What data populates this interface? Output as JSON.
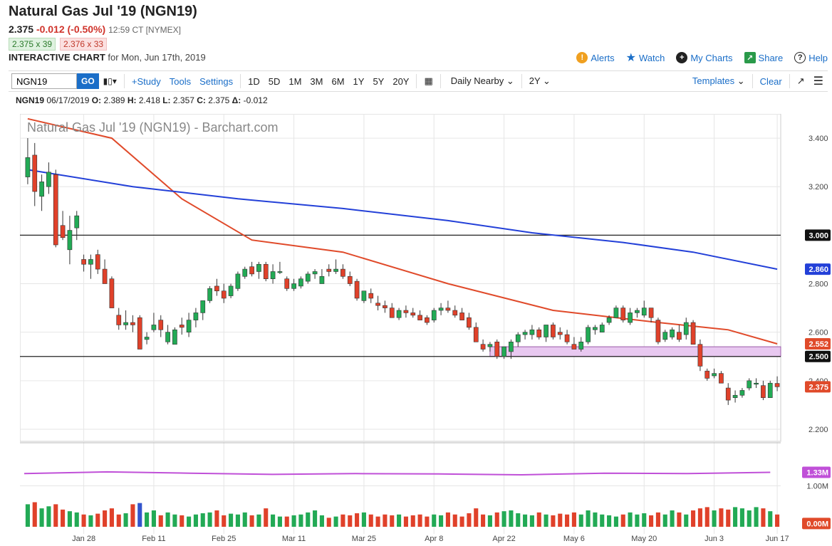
{
  "header": {
    "title": "Natural Gas Jul '19 (NGN19)",
    "last": "2.375",
    "change": "-0.012 (-0.50%)",
    "time": "12:59 CT [NYMEX]",
    "bid": "2.375 x 39",
    "ask": "2.376 x 33",
    "chart_label": "INTERACTIVE CHART",
    "chart_date": "for Mon, Jun 17th, 2019"
  },
  "links": {
    "alerts": "Alerts",
    "watch": "Watch",
    "mycharts": "My Charts",
    "share": "Share",
    "help": "Help"
  },
  "toolbar": {
    "symbol": "NGN19",
    "go": "GO",
    "study": "+Study",
    "tools": "Tools",
    "settings": "Settings",
    "ranges": [
      "1D",
      "5D",
      "1M",
      "3M",
      "6M",
      "1Y",
      "5Y",
      "20Y"
    ],
    "nearby": "Daily Nearby",
    "period": "2Y",
    "templates": "Templates",
    "clear": "Clear"
  },
  "ohlc": {
    "symbol": "NGN19",
    "date": "06/17/2019",
    "o": "2.389",
    "h": "2.418",
    "l": "2.357",
    "c": "2.375",
    "d": "-0.012"
  },
  "colors": {
    "up": "#22aa55",
    "down": "#e0412a",
    "ma50": "#e04a2a",
    "ma200": "#2340d8",
    "band": "#e8c8f0",
    "vol_avg": "#c050d8"
  },
  "chart_data": {
    "type": "candlestick",
    "title": "Natural Gas Jul '19 (NGN19) - Barchart.com",
    "ylim": [
      2.15,
      3.5
    ],
    "y_ticks": [
      "3.400",
      "3.200",
      "2.800",
      "2.600",
      "2.400",
      "2.200"
    ],
    "x_ticks": [
      "Jan 28",
      "Feb 11",
      "Feb 25",
      "Mar 11",
      "Mar 25",
      "Apr 8",
      "Apr 22",
      "May 6",
      "May 20",
      "Jun 3",
      "Jun 17"
    ],
    "horizontal_lines": [
      3.0,
      2.5
    ],
    "resistance_band": [
      2.5,
      2.54
    ],
    "tags": {
      "level_3000": "3.000",
      "ma200": "2.860",
      "ma50": "2.552",
      "level_2500": "2.500",
      "last": "2.375"
    },
    "candles": [
      [
        3.24,
        3.4,
        3.21,
        3.32
      ],
      [
        3.33,
        3.38,
        3.12,
        3.18
      ],
      [
        3.16,
        3.25,
        3.1,
        3.22
      ],
      [
        3.2,
        3.3,
        3.17,
        3.26
      ],
      [
        3.25,
        3.27,
        2.95,
        2.96
      ],
      [
        3.04,
        3.1,
        2.98,
        2.99
      ],
      [
        2.94,
        3.08,
        2.88,
        3.02
      ],
      [
        3.03,
        3.1,
        2.98,
        3.08
      ],
      [
        2.9,
        2.92,
        2.85,
        2.88
      ],
      [
        2.88,
        2.92,
        2.82,
        2.9
      ],
      [
        2.92,
        2.94,
        2.84,
        2.86
      ],
      [
        2.86,
        2.9,
        2.8,
        2.8
      ],
      [
        2.82,
        2.83,
        2.7,
        2.7
      ],
      [
        2.67,
        2.7,
        2.61,
        2.63
      ],
      [
        2.63,
        2.69,
        2.61,
        2.64
      ],
      [
        2.64,
        2.67,
        2.6,
        2.63
      ],
      [
        2.66,
        2.67,
        2.53,
        2.53
      ],
      [
        2.57,
        2.6,
        2.55,
        2.58
      ],
      [
        2.61,
        2.68,
        2.6,
        2.63
      ],
      [
        2.65,
        2.67,
        2.58,
        2.61
      ],
      [
        2.56,
        2.63,
        2.55,
        2.6
      ],
      [
        2.55,
        2.62,
        2.55,
        2.61
      ],
      [
        2.63,
        2.66,
        2.59,
        2.62
      ],
      [
        2.6,
        2.68,
        2.58,
        2.65
      ],
      [
        2.65,
        2.7,
        2.62,
        2.68
      ],
      [
        2.68,
        2.72,
        2.65,
        2.73
      ],
      [
        2.73,
        2.79,
        2.72,
        2.78
      ],
      [
        2.79,
        2.82,
        2.75,
        2.77
      ],
      [
        2.77,
        2.8,
        2.72,
        2.74
      ],
      [
        2.75,
        2.8,
        2.74,
        2.79
      ],
      [
        2.78,
        2.85,
        2.77,
        2.84
      ],
      [
        2.83,
        2.87,
        2.82,
        2.86
      ],
      [
        2.87,
        2.89,
        2.83,
        2.84
      ],
      [
        2.85,
        2.89,
        2.82,
        2.88
      ],
      [
        2.88,
        2.89,
        2.81,
        2.82
      ],
      [
        2.82,
        2.88,
        2.8,
        2.85
      ],
      [
        2.85,
        2.89,
        2.84,
        2.85
      ],
      [
        2.82,
        2.83,
        2.77,
        2.78
      ],
      [
        2.78,
        2.82,
        2.77,
        2.8
      ],
      [
        2.79,
        2.83,
        2.78,
        2.82
      ],
      [
        2.81,
        2.85,
        2.8,
        2.84
      ],
      [
        2.84,
        2.86,
        2.82,
        2.85
      ],
      [
        2.8,
        2.86,
        2.8,
        2.83
      ],
      [
        2.86,
        2.88,
        2.83,
        2.85
      ],
      [
        2.85,
        2.9,
        2.84,
        2.86
      ],
      [
        2.86,
        2.88,
        2.82,
        2.83
      ],
      [
        2.83,
        2.85,
        2.79,
        2.8
      ],
      [
        2.81,
        2.82,
        2.73,
        2.74
      ],
      [
        2.73,
        2.77,
        2.72,
        2.77
      ],
      [
        2.76,
        2.78,
        2.72,
        2.74
      ],
      [
        2.72,
        2.75,
        2.69,
        2.71
      ],
      [
        2.71,
        2.73,
        2.68,
        2.7
      ],
      [
        2.7,
        2.72,
        2.66,
        2.66
      ],
      [
        2.66,
        2.7,
        2.65,
        2.69
      ],
      [
        2.69,
        2.71,
        2.66,
        2.68
      ],
      [
        2.68,
        2.7,
        2.66,
        2.67
      ],
      [
        2.67,
        2.69,
        2.65,
        2.65
      ],
      [
        2.66,
        2.67,
        2.63,
        2.64
      ],
      [
        2.65,
        2.7,
        2.64,
        2.69
      ],
      [
        2.69,
        2.72,
        2.67,
        2.7
      ],
      [
        2.7,
        2.73,
        2.68,
        2.69
      ],
      [
        2.69,
        2.71,
        2.66,
        2.67
      ],
      [
        2.68,
        2.7,
        2.65,
        2.65
      ],
      [
        2.66,
        2.68,
        2.61,
        2.62
      ],
      [
        2.62,
        2.64,
        2.56,
        2.56
      ],
      [
        2.55,
        2.57,
        2.52,
        2.53
      ],
      [
        2.54,
        2.56,
        2.52,
        2.55
      ],
      [
        2.56,
        2.57,
        2.49,
        2.5
      ],
      [
        2.5,
        2.54,
        2.49,
        2.54
      ],
      [
        2.52,
        2.57,
        2.49,
        2.56
      ],
      [
        2.56,
        2.6,
        2.54,
        2.59
      ],
      [
        2.59,
        2.61,
        2.57,
        2.6
      ],
      [
        2.59,
        2.63,
        2.57,
        2.61
      ],
      [
        2.61,
        2.62,
        2.57,
        2.58
      ],
      [
        2.58,
        2.63,
        2.56,
        2.63
      ],
      [
        2.63,
        2.64,
        2.57,
        2.58
      ],
      [
        2.6,
        2.62,
        2.57,
        2.59
      ],
      [
        2.59,
        2.61,
        2.55,
        2.56
      ],
      [
        2.55,
        2.58,
        2.53,
        2.53
      ],
      [
        2.53,
        2.58,
        2.52,
        2.56
      ],
      [
        2.56,
        2.63,
        2.55,
        2.62
      ],
      [
        2.61,
        2.63,
        2.59,
        2.62
      ],
      [
        2.6,
        2.64,
        2.6,
        2.63
      ],
      [
        2.64,
        2.67,
        2.63,
        2.66
      ],
      [
        2.66,
        2.71,
        2.66,
        2.7
      ],
      [
        2.7,
        2.71,
        2.64,
        2.65
      ],
      [
        2.64,
        2.7,
        2.63,
        2.68
      ],
      [
        2.68,
        2.7,
        2.66,
        2.69
      ],
      [
        2.67,
        2.73,
        2.66,
        2.7
      ],
      [
        2.7,
        2.7,
        2.64,
        2.66
      ],
      [
        2.65,
        2.66,
        2.55,
        2.56
      ],
      [
        2.57,
        2.61,
        2.56,
        2.6
      ],
      [
        2.58,
        2.62,
        2.57,
        2.61
      ],
      [
        2.6,
        2.63,
        2.56,
        2.57
      ],
      [
        2.59,
        2.66,
        2.57,
        2.64
      ],
      [
        2.64,
        2.65,
        2.55,
        2.55
      ],
      [
        2.55,
        2.57,
        2.44,
        2.46
      ],
      [
        2.44,
        2.45,
        2.4,
        2.41
      ],
      [
        2.42,
        2.45,
        2.41,
        2.43
      ],
      [
        2.43,
        2.44,
        2.39,
        2.39
      ],
      [
        2.37,
        2.39,
        2.3,
        2.32
      ],
      [
        2.33,
        2.36,
        2.31,
        2.34
      ],
      [
        2.34,
        2.37,
        2.33,
        2.36
      ],
      [
        2.37,
        2.41,
        2.36,
        2.4
      ],
      [
        2.39,
        2.41,
        2.37,
        2.39
      ],
      [
        2.38,
        2.4,
        2.32,
        2.33
      ],
      [
        2.33,
        2.4,
        2.33,
        2.39
      ],
      [
        2.389,
        2.418,
        2.357,
        2.375
      ]
    ],
    "ma50": [
      [
        0,
        3.48
      ],
      [
        12,
        3.4
      ],
      [
        22,
        3.15
      ],
      [
        32,
        2.98
      ],
      [
        45,
        2.93
      ],
      [
        60,
        2.8
      ],
      [
        75,
        2.69
      ],
      [
        90,
        2.64
      ],
      [
        100,
        2.61
      ],
      [
        107,
        2.552
      ]
    ],
    "ma200": [
      [
        0,
        3.27
      ],
      [
        15,
        3.2
      ],
      [
        30,
        3.15
      ],
      [
        45,
        3.11
      ],
      [
        60,
        3.06
      ],
      [
        72,
        3.01
      ],
      [
        85,
        2.97
      ],
      [
        95,
        2.93
      ],
      [
        107,
        2.86
      ]
    ],
    "volume": {
      "tags": {
        "avg": "1.33M",
        "mid": "1.00M",
        "zero": "0.00M"
      },
      "ylim": [
        0,
        2.0
      ],
      "avg_line": [
        1.3,
        1.34,
        1.31,
        1.28,
        1.3,
        1.29,
        1.27,
        1.31,
        1.3,
        1.33
      ],
      "bars": [
        0.55,
        0.6,
        0.45,
        0.5,
        0.55,
        0.42,
        0.38,
        0.35,
        0.3,
        0.28,
        0.32,
        0.4,
        0.45,
        0.3,
        0.33,
        0.55,
        0.58,
        0.35,
        0.4,
        0.28,
        0.35,
        0.3,
        0.28,
        0.25,
        0.3,
        0.33,
        0.35,
        0.4,
        0.28,
        0.32,
        0.3,
        0.35,
        0.28,
        0.3,
        0.45,
        0.3,
        0.25,
        0.25,
        0.28,
        0.3,
        0.35,
        0.4,
        0.28,
        0.22,
        0.25,
        0.3,
        0.28,
        0.33,
        0.35,
        0.3,
        0.25,
        0.3,
        0.28,
        0.3,
        0.25,
        0.28,
        0.3,
        0.25,
        0.3,
        0.28,
        0.35,
        0.3,
        0.25,
        0.33,
        0.45,
        0.3,
        0.28,
        0.35,
        0.38,
        0.4,
        0.33,
        0.3,
        0.28,
        0.35,
        0.3,
        0.28,
        0.32,
        0.3,
        0.35,
        0.3,
        0.4,
        0.35,
        0.3,
        0.28,
        0.25,
        0.3,
        0.35,
        0.3,
        0.33,
        0.28,
        0.35,
        0.3,
        0.4,
        0.35,
        0.3,
        0.4,
        0.45,
        0.48,
        0.4,
        0.45,
        0.42,
        0.48,
        0.45,
        0.4,
        0.48,
        0.45,
        0.38,
        0.3
      ]
    }
  }
}
